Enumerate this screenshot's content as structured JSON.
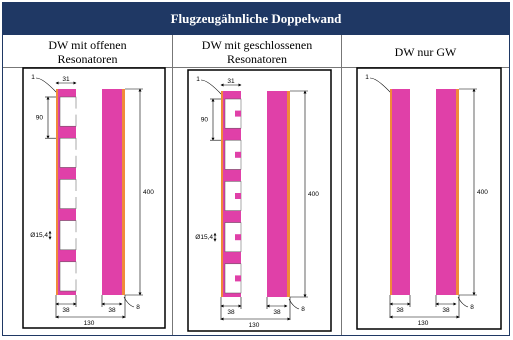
{
  "table": {
    "title": "Flugzeugähnliche Doppelwand",
    "columns": [
      {
        "line1": "DW mit offenen",
        "line2": "Resonatoren"
      },
      {
        "line1": "DW mit geschlossenen",
        "line2": "Resonatoren"
      },
      {
        "line1": "DW nur GW",
        "line2": ""
      }
    ]
  },
  "panels": [
    {
      "label_1": "1",
      "dim_top": "31",
      "dim_pitch": "90",
      "dim_height": "400",
      "dim_diameter": "Ø15,4",
      "dim_left": "38",
      "dim_right": "38",
      "dim_gap": "8",
      "dim_total": "130"
    },
    {
      "label_1": "1",
      "dim_top": "31",
      "dim_pitch": "90",
      "dim_height": "400",
      "dim_diameter": "Ø15,4",
      "dim_left": "38",
      "dim_right": "38",
      "dim_gap": "8",
      "dim_total": "130"
    },
    {
      "label_1": "1",
      "dim_height": "400",
      "dim_left": "38",
      "dim_right": "38",
      "dim_gap": "8",
      "dim_total": "130"
    }
  ],
  "colors": {
    "header_bg": "#1f3864",
    "wall_magenta": "#e040a8",
    "wall_orange": "#f08a3a",
    "resonator_fill": "#ffffff"
  }
}
